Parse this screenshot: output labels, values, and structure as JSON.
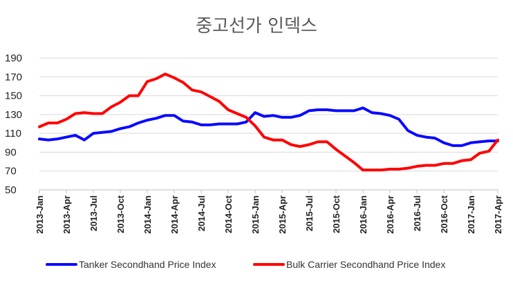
{
  "chart_data": {
    "type": "line",
    "title": "중고선가 인덱스",
    "xlabel": "",
    "ylabel": "",
    "ylim": [
      50,
      190
    ],
    "yticks": [
      50,
      70,
      90,
      110,
      130,
      150,
      170,
      190
    ],
    "grid": true,
    "legend_position": "bottom",
    "x": [
      "2013-Jan",
      "2013-Feb",
      "2013-Mar",
      "2013-Apr",
      "2013-May",
      "2013-Jun",
      "2013-Jul",
      "2013-Aug",
      "2013-Sep",
      "2013-Oct",
      "2013-Nov",
      "2013-Dec",
      "2014-Jan",
      "2014-Feb",
      "2014-Mar",
      "2014-Apr",
      "2014-May",
      "2014-Jun",
      "2014-Jul",
      "2014-Aug",
      "2014-Sep",
      "2014-Oct",
      "2014-Nov",
      "2014-Dec",
      "2015-Jan",
      "2015-Feb",
      "2015-Mar",
      "2015-Apr",
      "2015-May",
      "2015-Jun",
      "2015-Jul",
      "2015-Aug",
      "2015-Sep",
      "2015-Oct",
      "2015-Nov",
      "2015-Dec",
      "2016-Jan",
      "2016-Feb",
      "2016-Mar",
      "2016-Apr",
      "2016-May",
      "2016-Jun",
      "2016-Jul",
      "2016-Aug",
      "2016-Sep",
      "2016-Oct",
      "2016-Nov",
      "2016-Dec",
      "2017-Jan",
      "2017-Feb",
      "2017-Mar",
      "2017-Apr"
    ],
    "xtick_labels": [
      "2013-Jan",
      "2013-Apr",
      "2013-Jul",
      "2013-Oct",
      "2014-Jan",
      "2014-Apr",
      "2014-Jul",
      "2014-Oct",
      "2015-Jan",
      "2015-Apr",
      "2015-Jul",
      "2015-Oct",
      "2016-Jan",
      "2016-Apr",
      "2016-Jul",
      "2016-Oct",
      "2017-Jan",
      "2017-Apr"
    ],
    "series": [
      {
        "name": "Tanker Secondhand Price Index",
        "color": "#0a0aff",
        "values": [
          104,
          103,
          104,
          106,
          108,
          103,
          110,
          111,
          112,
          115,
          117,
          121,
          124,
          126,
          129,
          129,
          123,
          122,
          119,
          119,
          120,
          120,
          120,
          122,
          132,
          128,
          129,
          127,
          127,
          129,
          134,
          135,
          135,
          134,
          134,
          134,
          137,
          132,
          131,
          129,
          125,
          113,
          108,
          106,
          105,
          100,
          97,
          97,
          100,
          101,
          102,
          102
        ]
      },
      {
        "name": "Bulk Carrier Secondhand Price Index",
        "color": "#ff0000",
        "values": [
          117,
          121,
          121,
          125,
          131,
          132,
          131,
          131,
          138,
          143,
          150,
          150,
          165,
          168,
          173,
          169,
          164,
          156,
          154,
          149,
          144,
          135,
          131,
          127,
          118,
          106,
          103,
          103,
          98,
          96,
          98,
          101,
          101,
          93,
          86,
          79,
          71,
          71,
          71,
          72,
          72,
          73,
          75,
          76,
          76,
          78,
          78,
          81,
          82,
          89,
          91,
          103
        ]
      }
    ]
  }
}
